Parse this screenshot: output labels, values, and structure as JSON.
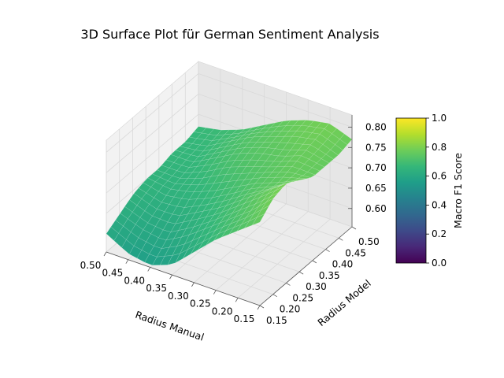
{
  "chart_data": {
    "type": "surface",
    "title": "3D Surface Plot für German Sentiment Analysis",
    "xlabel": "Radius Manual",
    "ylabel": "Radius Model",
    "zlabel": "",
    "x_ticks": [
      "0.15",
      "0.20",
      "0.25",
      "0.30",
      "0.35",
      "0.40",
      "0.45",
      "0.50"
    ],
    "y_ticks": [
      "0.15",
      "0.20",
      "0.25",
      "0.30",
      "0.35",
      "0.40",
      "0.45",
      "0.50"
    ],
    "z_ticks": [
      "0.60",
      "0.65",
      "0.70",
      "0.75",
      "0.80"
    ],
    "xlim": [
      0.15,
      0.5
    ],
    "ylim": [
      0.15,
      0.5
    ],
    "zlim": [
      0.555,
      0.83
    ],
    "grid": true,
    "colormap": "viridis",
    "colorbar": {
      "label": "Macro F1 Score",
      "range": [
        0.0,
        1.0
      ],
      "ticks": [
        "0.0",
        "0.2",
        "0.4",
        "0.6",
        "0.8",
        "1.0"
      ]
    },
    "surface_x": [
      0.15,
      0.2,
      0.25,
      0.3,
      0.35,
      0.4,
      0.45,
      0.5
    ],
    "surface_y": [
      0.15,
      0.2,
      0.25,
      0.3,
      0.35,
      0.4,
      0.45,
      0.5
    ],
    "surface_z": [
      [
        0.76,
        0.79,
        0.8,
        0.78,
        0.76,
        0.76,
        0.76,
        0.77
      ],
      [
        0.72,
        0.74,
        0.76,
        0.75,
        0.76,
        0.77,
        0.78,
        0.79
      ],
      [
        0.68,
        0.7,
        0.72,
        0.73,
        0.74,
        0.75,
        0.77,
        0.78
      ],
      [
        0.63,
        0.66,
        0.68,
        0.7,
        0.72,
        0.74,
        0.75,
        0.76
      ],
      [
        0.58,
        0.62,
        0.65,
        0.67,
        0.7,
        0.72,
        0.73,
        0.73
      ],
      [
        0.56,
        0.59,
        0.62,
        0.65,
        0.67,
        0.69,
        0.7,
        0.7
      ],
      [
        0.57,
        0.6,
        0.62,
        0.64,
        0.65,
        0.66,
        0.67,
        0.68
      ],
      [
        0.6,
        0.62,
        0.64,
        0.65,
        0.65,
        0.66,
        0.66,
        0.67
      ]
    ]
  }
}
